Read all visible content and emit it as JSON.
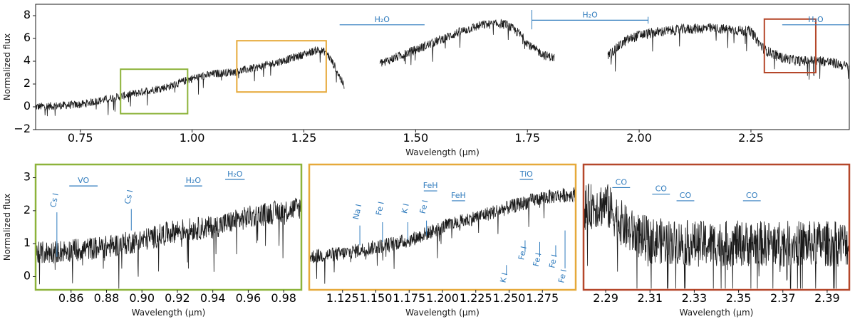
{
  "colors": {
    "spectrum": "#1a1a1a",
    "annotation": "#2f7bbd",
    "green": "#8db33a",
    "orange": "#e6a93a",
    "red": "#b5472a"
  },
  "chart_data": [
    {
      "id": "overview",
      "type": "line",
      "xlabel": "Wavelength (μm)",
      "ylabel": "Normalized flux",
      "xlim": [
        0.65,
        2.47
      ],
      "ylim": [
        -2,
        9
      ],
      "xticks": [
        "0.75",
        "1.00",
        "1.25",
        "1.50",
        "1.75",
        "2.00",
        "2.25"
      ],
      "xtick_values": [
        0.75,
        1.0,
        1.25,
        1.5,
        1.75,
        2.0,
        2.25
      ],
      "yticks": [
        "−2",
        "0",
        "2",
        "4",
        "6",
        "8"
      ],
      "ytick_values": [
        -2,
        0,
        2,
        4,
        6,
        8
      ],
      "segments": [
        {
          "x": [
            0.65,
            0.75,
            0.85,
            0.95,
            1.0,
            1.05,
            1.1,
            1.15,
            1.2,
            1.25,
            1.28,
            1.3,
            1.32,
            1.34
          ],
          "y": [
            0.0,
            0.2,
            1.0,
            1.8,
            2.5,
            2.9,
            3.1,
            3.5,
            4.0,
            4.6,
            5.0,
            4.8,
            3.5,
            1.8
          ],
          "noise": 0.35
        },
        {
          "x": [
            1.42,
            1.5,
            1.55,
            1.6,
            1.65,
            1.7,
            1.73,
            1.76,
            1.79,
            1.81
          ],
          "y": [
            3.8,
            5.0,
            5.8,
            6.6,
            7.2,
            7.3,
            6.5,
            5.2,
            4.5,
            4.3
          ],
          "noise": 0.4
        },
        {
          "x": [
            1.93,
            1.97,
            2.0,
            2.05,
            2.1,
            2.15,
            2.2,
            2.25,
            2.28,
            2.32,
            2.36,
            2.4,
            2.44,
            2.47
          ],
          "y": [
            4.5,
            5.8,
            6.3,
            6.6,
            6.8,
            6.9,
            6.8,
            6.6,
            5.0,
            4.3,
            4.0,
            4.1,
            3.8,
            3.5
          ],
          "noise": 0.45
        }
      ],
      "bands": [
        {
          "label": "H₂O",
          "x_start": 1.33,
          "x_end": 1.52,
          "y": 7.2
        },
        {
          "label": "H₂O",
          "x_start": 1.76,
          "x_end": 2.02,
          "y": 7.6
        },
        {
          "label": "H₂O",
          "x_start": 2.32,
          "x_end": 2.47,
          "y": 7.2
        }
      ],
      "highlight_boxes": [
        {
          "color": "green",
          "x_start": 0.84,
          "x_end": 0.99,
          "y_start": -0.6,
          "y_end": 3.3
        },
        {
          "color": "orange",
          "x_start": 1.1,
          "x_end": 1.3,
          "y_start": 1.3,
          "y_end": 5.8
        },
        {
          "color": "red",
          "x_start": 2.28,
          "x_end": 2.395,
          "y_start": 3.0,
          "y_end": 7.7
        }
      ]
    },
    {
      "id": "zoom-green",
      "type": "line",
      "frame_color": "green",
      "xlabel": "Wavelength (μm)",
      "ylabel": "Normalized flux",
      "xlim": [
        0.84,
        0.99
      ],
      "ylim": [
        -0.4,
        3.4
      ],
      "xticks": [
        "0.86",
        "0.88",
        "0.90",
        "0.92",
        "0.94",
        "0.96",
        "0.98"
      ],
      "xtick_values": [
        0.86,
        0.88,
        0.9,
        0.92,
        0.94,
        0.96,
        0.98
      ],
      "yticks": [
        "0",
        "1",
        "2",
        "3"
      ],
      "ytick_values": [
        0,
        1,
        2,
        3
      ],
      "segments": [
        {
          "x": [
            0.84,
            0.86,
            0.88,
            0.9,
            0.92,
            0.94,
            0.96,
            0.98,
            0.99
          ],
          "y": [
            0.7,
            0.8,
            0.9,
            1.1,
            1.4,
            1.5,
            1.8,
            2.0,
            2.1
          ],
          "noise": 0.35
        }
      ],
      "bands": [
        {
          "label": "VO",
          "x_start": 0.859,
          "x_end": 0.875,
          "y": 2.75
        },
        {
          "label": "H₂O",
          "x_start": 0.924,
          "x_end": 0.934,
          "y": 2.75
        },
        {
          "label": "H₂O",
          "x_start": 0.947,
          "x_end": 0.958,
          "y": 2.95
        }
      ],
      "line_markers": [
        {
          "label": "Cs I",
          "x": 0.852,
          "label_y": 2.3,
          "tick_from": 0.6,
          "tick_to": 1.95,
          "side": "above"
        },
        {
          "label": "Cs I",
          "x": 0.894,
          "label_y": 2.4,
          "tick_from": 1.4,
          "tick_to": 2.05,
          "side": "above"
        }
      ]
    },
    {
      "id": "zoom-orange",
      "type": "line",
      "frame_color": "orange",
      "xlabel": "Wavelength (μm)",
      "ylabel": "",
      "xlim": [
        1.1,
        1.3
      ],
      "ylim": [
        -0.4,
        3.4
      ],
      "xticks": [
        "1.125",
        "1.150",
        "1.175",
        "1.200",
        "1.225",
        "1.250",
        "1.275"
      ],
      "xtick_values": [
        1.125,
        1.15,
        1.175,
        1.2,
        1.225,
        1.25,
        1.275
      ],
      "yticks": [],
      "ytick_values": [],
      "segments": [
        {
          "x": [
            1.1,
            1.125,
            1.15,
            1.175,
            1.2,
            1.225,
            1.25,
            1.275,
            1.3
          ],
          "y": [
            0.6,
            0.7,
            0.9,
            1.1,
            1.5,
            1.8,
            2.1,
            2.4,
            2.5
          ],
          "noise": 0.22
        }
      ],
      "bands": [
        {
          "label": "FeH",
          "x_start": 1.186,
          "x_end": 1.196,
          "y": 2.6
        },
        {
          "label": "FeH",
          "x_start": 1.207,
          "x_end": 1.217,
          "y": 2.3
        },
        {
          "label": "TiO",
          "x_start": 1.258,
          "x_end": 1.268,
          "y": 2.95
        }
      ],
      "line_markers": [
        {
          "label": "Na I",
          "x": 1.138,
          "label_y": 1.95,
          "tick_from": 0.95,
          "tick_to": 1.55,
          "side": "above"
        },
        {
          "label": "Fe I",
          "x": 1.155,
          "label_y": 2.05,
          "tick_from": 1.05,
          "tick_to": 1.65,
          "side": "above"
        },
        {
          "label": "K I",
          "x": 1.174,
          "label_y": 2.05,
          "tick_from": 1.1,
          "tick_to": 1.65,
          "side": "above"
        },
        {
          "label": "Fe I",
          "x": 1.188,
          "label_y": 2.1,
          "tick_from": 1.25,
          "tick_to": 1.7,
          "side": "above"
        },
        {
          "label": "K I",
          "x": 1.248,
          "label_y": -0.05,
          "tick_from": 0.05,
          "tick_to": 0.35,
          "side": "below"
        },
        {
          "label": "Fe I",
          "x": 1.262,
          "label_y": 0.7,
          "tick_from": 0.75,
          "tick_to": 1.1,
          "side": "below"
        },
        {
          "label": "Fe I",
          "x": 1.273,
          "label_y": 0.5,
          "tick_from": 0.6,
          "tick_to": 1.05,
          "side": "below"
        },
        {
          "label": "Fe I",
          "x": 1.285,
          "label_y": 0.45,
          "tick_from": 0.6,
          "tick_to": 0.95,
          "side": "below"
        },
        {
          "label": "Fe I",
          "x": 1.292,
          "label_y": 0.0,
          "tick_from": 0.25,
          "tick_to": 1.4,
          "side": "below"
        }
      ]
    },
    {
      "id": "zoom-red",
      "type": "line",
      "frame_color": "red",
      "xlabel": "Wavelength (μm)",
      "ylabel": "",
      "xlim": [
        2.28,
        2.4
      ],
      "ylim": [
        -0.4,
        3.4
      ],
      "xticks": [
        "2.29",
        "2.31",
        "2.33",
        "2.35",
        "2.37",
        "2.39"
      ],
      "xtick_values": [
        2.29,
        2.31,
        2.33,
        2.35,
        2.37,
        2.39
      ],
      "yticks": [],
      "ytick_values": [],
      "segments": [
        {
          "x": [
            2.28,
            2.29,
            2.3,
            2.31,
            2.33,
            2.35,
            2.37,
            2.39,
            2.4
          ],
          "y": [
            2.1,
            2.2,
            1.4,
            1.1,
            1.0,
            1.0,
            1.0,
            1.0,
            1.0
          ],
          "noise": 0.7
        }
      ],
      "bands": [
        {
          "label": "CO",
          "x_start": 2.293,
          "x_end": 2.301,
          "y": 2.7
        },
        {
          "label": "CO",
          "x_start": 2.311,
          "x_end": 2.319,
          "y": 2.5
        },
        {
          "label": "CO",
          "x_start": 2.322,
          "x_end": 2.33,
          "y": 2.3
        },
        {
          "label": "CO",
          "x_start": 2.352,
          "x_end": 2.36,
          "y": 2.3
        }
      ]
    }
  ]
}
